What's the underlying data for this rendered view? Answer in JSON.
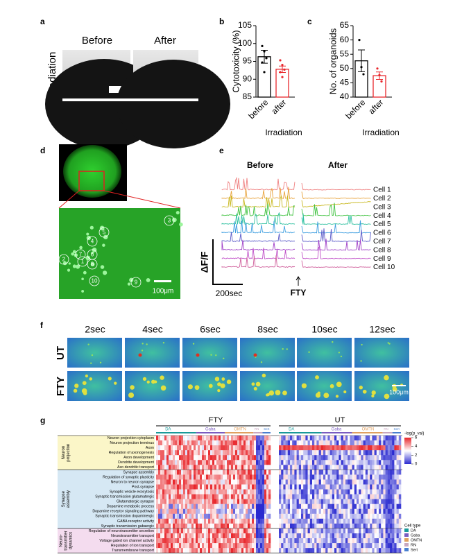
{
  "panel_a": {
    "letter": "a",
    "before": "Before",
    "after": "After",
    "side_label": "Irradiation"
  },
  "panel_b": {
    "letter": "b",
    "type": "bar",
    "ylabel": "Cytotoxicity (%)",
    "xlabel": "Irradiation",
    "categories": [
      "before",
      "after"
    ],
    "values": [
      96.3,
      92.8
    ],
    "errors": [
      1.8,
      0.9
    ],
    "points": [
      [
        99.3,
        97.8,
        95.9,
        94.7,
        92.0
      ],
      [
        95.3,
        94.0,
        92.7,
        92.0,
        90.6
      ]
    ],
    "colors": [
      "#000000",
      "#e8262b"
    ],
    "ylim": [
      85,
      105
    ],
    "yticks": [
      85,
      90,
      95,
      100,
      105
    ]
  },
  "panel_c": {
    "letter": "c",
    "type": "bar",
    "ylabel": "No. of organoids",
    "xlabel": "Irradiation",
    "categories": [
      "before",
      "after"
    ],
    "values": [
      52.7,
      47.5
    ],
    "errors": [
      3.8,
      1.3
    ],
    "points": [
      [
        60.0,
        50.5,
        48.0
      ],
      [
        50.0,
        47.7,
        45.5
      ]
    ],
    "colors": [
      "#000000",
      "#e8262b"
    ],
    "ylim": [
      40,
      65
    ],
    "yticks": [
      40,
      45,
      50,
      55,
      60,
      65
    ]
  },
  "panel_d": {
    "letter": "d",
    "cells": [
      "1",
      "2",
      "3",
      "4",
      "5",
      "6",
      "7",
      "8",
      "9",
      "10"
    ],
    "scale": "100μm"
  },
  "panel_e": {
    "letter": "e",
    "before": "Before",
    "after": "After",
    "cells": [
      "Cell 1",
      "Cell 2",
      "Cell 3",
      "Cell 4",
      "Cell 5",
      "Cell 6",
      "Cell 7",
      "Cell 8",
      "Cell 9",
      "Cell 10"
    ],
    "ylabel": "ΔF/F",
    "time_scale": "200sec",
    "drug": "FTY"
  },
  "panel_f": {
    "letter": "f",
    "times": [
      "2sec",
      "4sec",
      "6sec",
      "8sec",
      "10sec",
      "12sec"
    ],
    "rows": [
      "UT",
      "FTY"
    ],
    "scale": "100μm"
  },
  "panel_g": {
    "letter": "g",
    "conditions": [
      "FTY",
      "UT"
    ],
    "clusters": [
      "DA",
      "Gaba",
      "OMTN",
      "RN",
      "Sert"
    ],
    "groups": [
      {
        "label": [
          "Neuron",
          "projection"
        ],
        "terms": [
          "Neuron projection cytoplasm",
          "Neuron projection terminus",
          "Axon",
          "Regulation of axonogenesis",
          "Axon development",
          "Dendrite development",
          "Axo dendritic transport"
        ]
      },
      {
        "label": [
          "Synapse",
          "assembly"
        ],
        "terms": [
          "Synapse assembly",
          "Regulation of synaptic plasticity",
          "Neuron to neuron synapse",
          "Post-synapse",
          "Synaptic vesicle exocytosis",
          "Synaptic transmission glutamatergic",
          "Glutamatergic synapse",
          "Dopamine metabolic process",
          "Dopamine receptor signaling pathway",
          "Synaptic transmission dopaminergic",
          "GABA receptor activity",
          "Synaptic transmission gabaergic"
        ]
      },
      {
        "label": [
          "Neuro-",
          "transmitter",
          "dynamics"
        ],
        "terms": [
          "Regulation of neurotransmitter secretion",
          "Neurotransmitter transport",
          "Voltage gated ion channel activity",
          "Regulation of ion transport",
          "Transmembrane transport"
        ]
      }
    ],
    "colorbar_title": "-log(p_val)",
    "colorbar_lim": [
      0,
      6
    ],
    "colorbar_ticks": [
      0,
      2,
      4,
      6
    ],
    "legend_title": "Cell type",
    "legend": [
      "DA",
      "Gaba",
      "OMTN",
      "RN",
      "Sert"
    ]
  }
}
